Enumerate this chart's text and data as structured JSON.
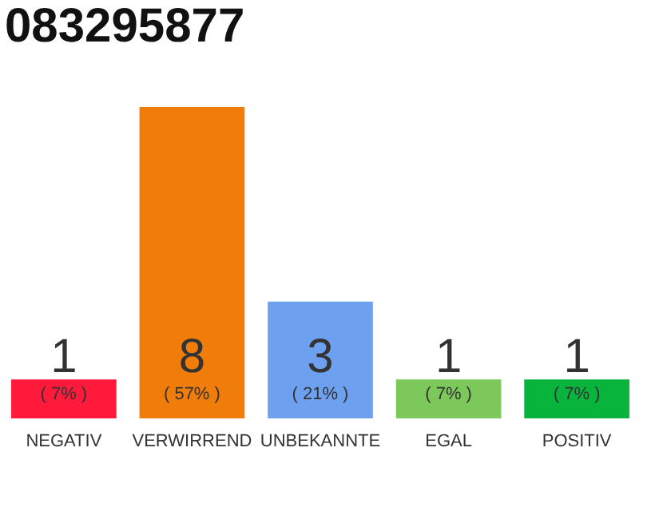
{
  "chart_data": {
    "type": "bar",
    "title": "083295877",
    "categories": [
      "NEGATIV",
      "VERWIRREND",
      "UNBEKANNTE",
      "EGAL",
      "POSITIV"
    ],
    "values": [
      1,
      8,
      3,
      1,
      1
    ],
    "colors": [
      "#ff1a3c",
      "#f07d0a",
      "#6ea0f0",
      "#7dc85a",
      "#08b43c"
    ],
    "data_labels": true,
    "annotations": [
      "( 7% )",
      "( 57% )",
      "( 21% )",
      "( 7% )",
      "( 7% )"
    ]
  }
}
